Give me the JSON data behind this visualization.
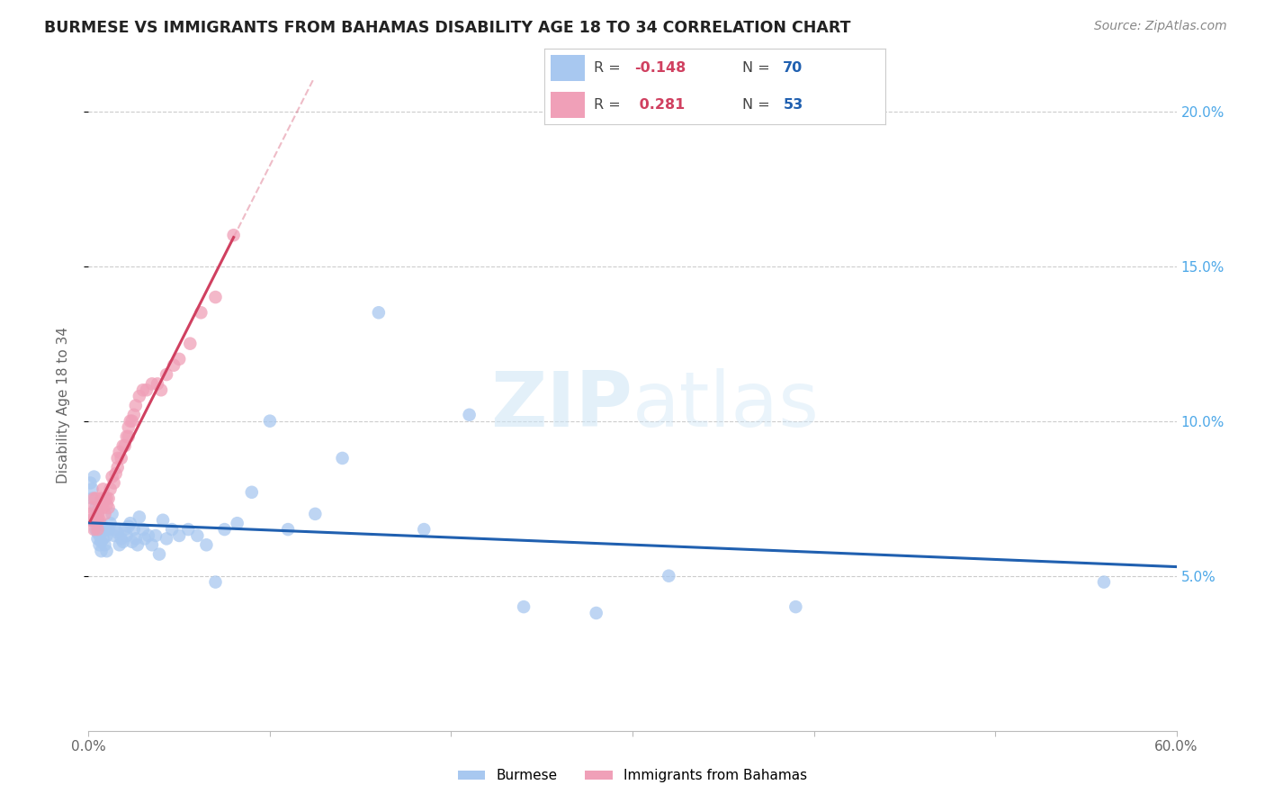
{
  "title": "BURMESE VS IMMIGRANTS FROM BAHAMAS DISABILITY AGE 18 TO 34 CORRELATION CHART",
  "source": "Source: ZipAtlas.com",
  "ylabel": "Disability Age 18 to 34",
  "xlim": [
    0,
    0.6
  ],
  "ylim": [
    0,
    0.21
  ],
  "yticks_right": [
    0.05,
    0.1,
    0.15,
    0.2
  ],
  "yticks_right_labels": [
    "5.0%",
    "10.0%",
    "15.0%",
    "20.0%"
  ],
  "series1_name": "Burmese",
  "series1_color": "#a8c8f0",
  "series1_R": -0.148,
  "series1_N": 70,
  "series1_line_color": "#2060b0",
  "series2_name": "Immigrants from Bahamas",
  "series2_color": "#f0a0b8",
  "series2_R": 0.281,
  "series2_N": 53,
  "series2_line_color": "#d04060",
  "watermark": "ZIPatlas",
  "burmese_x": [
    0.001,
    0.002,
    0.002,
    0.003,
    0.003,
    0.004,
    0.004,
    0.005,
    0.005,
    0.005,
    0.005,
    0.006,
    0.006,
    0.006,
    0.007,
    0.007,
    0.007,
    0.008,
    0.008,
    0.009,
    0.009,
    0.01,
    0.01,
    0.011,
    0.012,
    0.013,
    0.014,
    0.015,
    0.016,
    0.017,
    0.018,
    0.019,
    0.02,
    0.021,
    0.022,
    0.023,
    0.024,
    0.025,
    0.026,
    0.027,
    0.028,
    0.03,
    0.031,
    0.033,
    0.035,
    0.037,
    0.039,
    0.041,
    0.043,
    0.046,
    0.05,
    0.055,
    0.06,
    0.065,
    0.07,
    0.075,
    0.082,
    0.09,
    0.1,
    0.11,
    0.125,
    0.14,
    0.16,
    0.185,
    0.21,
    0.24,
    0.28,
    0.32,
    0.39,
    0.56
  ],
  "burmese_y": [
    0.08,
    0.075,
    0.078,
    0.082,
    0.068,
    0.072,
    0.065,
    0.07,
    0.068,
    0.064,
    0.062,
    0.067,
    0.063,
    0.06,
    0.064,
    0.061,
    0.058,
    0.066,
    0.062,
    0.065,
    0.06,
    0.063,
    0.058,
    0.065,
    0.067,
    0.07,
    0.063,
    0.065,
    0.064,
    0.06,
    0.062,
    0.061,
    0.065,
    0.063,
    0.066,
    0.067,
    0.061,
    0.065,
    0.062,
    0.06,
    0.069,
    0.065,
    0.062,
    0.063,
    0.06,
    0.063,
    0.057,
    0.068,
    0.062,
    0.065,
    0.063,
    0.065,
    0.063,
    0.06,
    0.048,
    0.065,
    0.067,
    0.077,
    0.1,
    0.065,
    0.07,
    0.088,
    0.135,
    0.065,
    0.102,
    0.04,
    0.038,
    0.05,
    0.04,
    0.048
  ],
  "bahamas_x": [
    0.001,
    0.001,
    0.002,
    0.002,
    0.003,
    0.003,
    0.004,
    0.004,
    0.005,
    0.005,
    0.005,
    0.006,
    0.006,
    0.007,
    0.007,
    0.008,
    0.008,
    0.009,
    0.009,
    0.01,
    0.01,
    0.011,
    0.011,
    0.012,
    0.013,
    0.014,
    0.015,
    0.016,
    0.016,
    0.017,
    0.018,
    0.019,
    0.02,
    0.021,
    0.022,
    0.022,
    0.023,
    0.024,
    0.025,
    0.026,
    0.028,
    0.03,
    0.032,
    0.035,
    0.038,
    0.04,
    0.043,
    0.047,
    0.05,
    0.056,
    0.062,
    0.07,
    0.08
  ],
  "bahamas_y": [
    0.068,
    0.07,
    0.072,
    0.068,
    0.075,
    0.065,
    0.075,
    0.068,
    0.07,
    0.068,
    0.065,
    0.072,
    0.068,
    0.075,
    0.073,
    0.078,
    0.072,
    0.075,
    0.07,
    0.075,
    0.073,
    0.075,
    0.072,
    0.078,
    0.082,
    0.08,
    0.083,
    0.085,
    0.088,
    0.09,
    0.088,
    0.092,
    0.092,
    0.095,
    0.095,
    0.098,
    0.1,
    0.1,
    0.102,
    0.105,
    0.108,
    0.11,
    0.11,
    0.112,
    0.112,
    0.11,
    0.115,
    0.118,
    0.12,
    0.125,
    0.135,
    0.14,
    0.16
  ]
}
